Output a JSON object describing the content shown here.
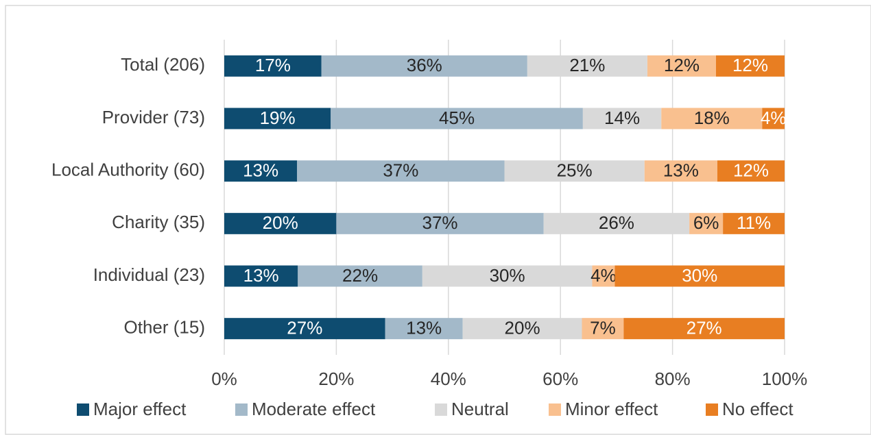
{
  "chart_data": {
    "type": "bar",
    "orientation": "horizontal",
    "stacking": "percent",
    "categories": [
      "Total (206)",
      "Provider (73)",
      "Local Authority (60)",
      "Charity (35)",
      "Individual (23)",
      "Other (15)"
    ],
    "series": [
      {
        "name": "Major effect",
        "color": "#0e4c70",
        "label_color": "#ffffff",
        "values": [
          17,
          19,
          13,
          20,
          13,
          27
        ],
        "value_labels": [
          "17%",
          "19%",
          "13%",
          "20%",
          "13%",
          "27%"
        ]
      },
      {
        "name": "Moderate effect",
        "color": "#a3b9c9",
        "label_color": "#262626",
        "values": [
          36,
          45,
          37,
          37,
          22,
          13
        ],
        "value_labels": [
          "36%",
          "45%",
          "37%",
          "37%",
          "22%",
          "13%"
        ]
      },
      {
        "name": "Neutral",
        "color": "#d9d9d9",
        "label_color": "#262626",
        "values": [
          21,
          14,
          25,
          26,
          30,
          20
        ],
        "value_labels": [
          "21%",
          "14%",
          "25%",
          "26%",
          "30%",
          "20%"
        ]
      },
      {
        "name": "Minor effect",
        "color": "#f9c08f",
        "label_color": "#262626",
        "values": [
          12,
          18,
          13,
          6,
          4,
          7
        ],
        "value_labels": [
          "12%",
          "18%",
          "13%",
          "6%",
          "4%",
          "7%"
        ]
      },
      {
        "name": "No effect",
        "color": "#e87e22",
        "label_color": "#ffffff",
        "values": [
          12,
          4,
          12,
          11,
          30,
          27
        ],
        "value_labels": [
          "12%",
          "4%",
          "12%",
          "11%",
          "30%",
          "27%"
        ]
      }
    ],
    "xlim": [
      0,
      100
    ],
    "xticks": [
      {
        "value": 0,
        "label": "0%"
      },
      {
        "value": 20,
        "label": "20%"
      },
      {
        "value": 40,
        "label": "40%"
      },
      {
        "value": 60,
        "label": "60%"
      },
      {
        "value": 80,
        "label": "80%"
      },
      {
        "value": 100,
        "label": "100%"
      }
    ],
    "grid": true,
    "legend": "bottom"
  }
}
